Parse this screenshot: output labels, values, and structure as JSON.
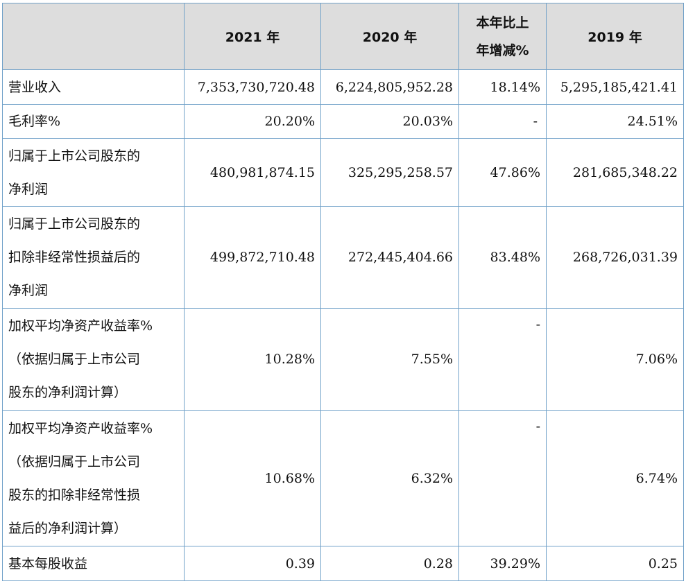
{
  "headers": {
    "blank": "",
    "y2021": "2021 年",
    "y2020": "2020 年",
    "change_l1": "本年比上",
    "change_l2": "年增减%",
    "y2019": "2019 年"
  },
  "rows": [
    {
      "label": [
        "营业收入"
      ],
      "v2021": "7,353,730,720.48",
      "v2020": "6,224,805,952.28",
      "change": "18.14%",
      "v2019": "5,295,185,421.41"
    },
    {
      "label": [
        "毛利率%"
      ],
      "v2021": "20.20%",
      "v2020": "20.03%",
      "change": "-",
      "v2019": "24.51%"
    },
    {
      "label": [
        "归属于上市公司股东的",
        "净利润"
      ],
      "v2021": "480,981,874.15",
      "v2020": "325,295,258.57",
      "change": "47.86%",
      "v2019": "281,685,348.22"
    },
    {
      "label": [
        "归属于上市公司股东的",
        "扣除非经常性损益后的",
        "净利润"
      ],
      "v2021": "499,872,710.48",
      "v2020": "272,445,404.66",
      "change": "83.48%",
      "v2019": "268,726,031.39"
    },
    {
      "label": [
        "加权平均净资产收益率%",
        "（依据归属于上市公司",
        "股东的净利润计算）"
      ],
      "v2021": "10.28%",
      "v2020": "7.55%",
      "change": "-",
      "v2019": "7.06%"
    },
    {
      "label": [
        "加权平均净资产收益率%",
        "（依据归属于上市公司",
        "股东的扣除非经常性损",
        "益后的净利润计算）"
      ],
      "v2021": "10.68%",
      "v2020": "6.32%",
      "change": "-",
      "v2019": "6.74%"
    },
    {
      "label": [
        "基本每股收益"
      ],
      "v2021": "0.39",
      "v2020": "0.28",
      "change": "39.29%",
      "v2019": "0.25"
    }
  ]
}
